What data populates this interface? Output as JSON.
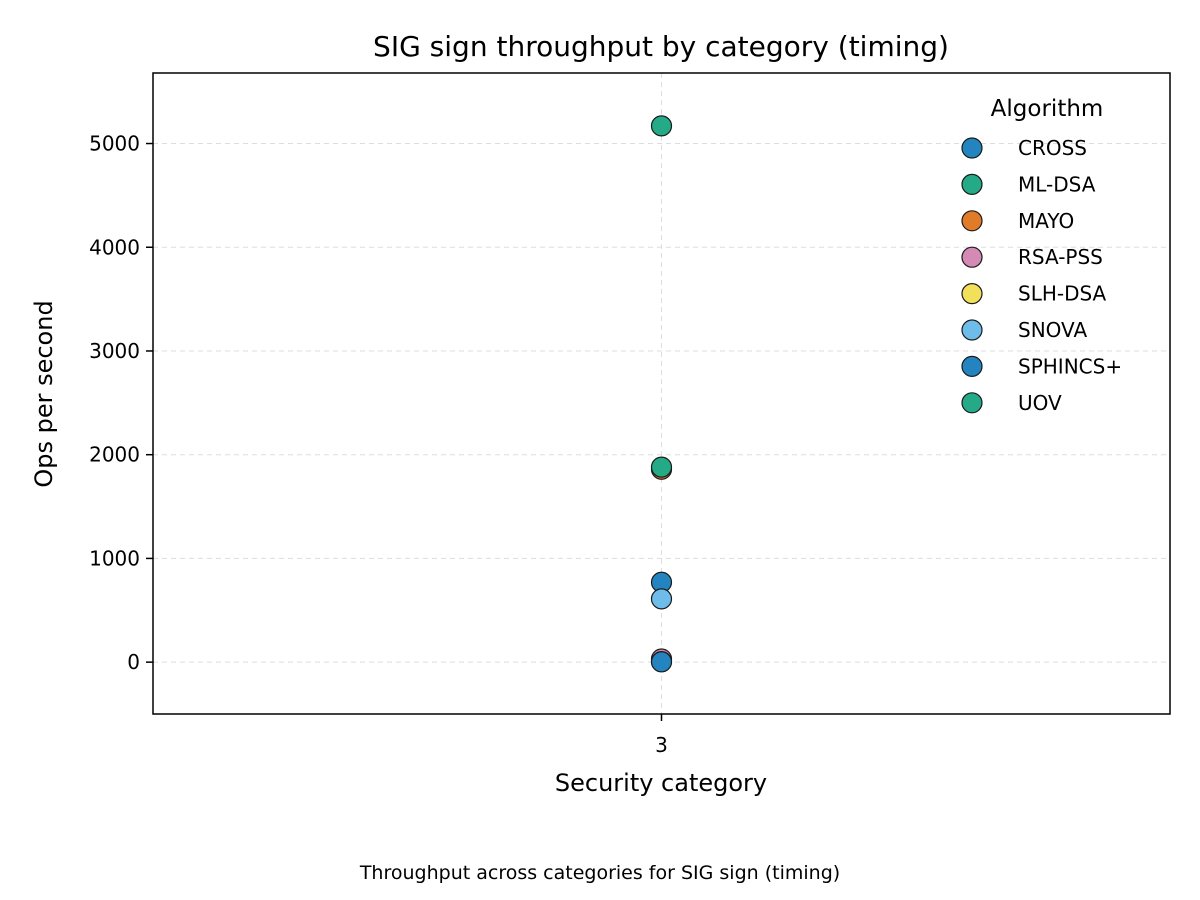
{
  "chart_data": {
    "type": "scatter",
    "title": "SIG sign throughput by category (timing)",
    "xlabel": "Security category",
    "ylabel": "Ops per second",
    "caption": "Throughput across categories for SIG sign (timing)",
    "x_categories": [
      "3"
    ],
    "ylim": [
      -500,
      5680
    ],
    "yticks": [
      0,
      1000,
      2000,
      3000,
      4000,
      5000
    ],
    "grid": true,
    "legend": {
      "title": "Algorithm",
      "placement": "top-right"
    },
    "series": [
      {
        "name": "CROSS",
        "color": "#2384c0",
        "points": [
          {
            "x": "3",
            "y": 770
          }
        ]
      },
      {
        "name": "ML-DSA",
        "color": "#25aa87",
        "points": [
          {
            "x": "3",
            "y": 5170
          }
        ]
      },
      {
        "name": "MAYO",
        "color": "#e07b2a",
        "points": [
          {
            "x": "3",
            "y": 1860
          }
        ]
      },
      {
        "name": "RSA-PSS",
        "color": "#d48ab4",
        "points": [
          {
            "x": "3",
            "y": 30
          }
        ]
      },
      {
        "name": "SLH-DSA",
        "color": "#f2e05a",
        "points": [
          {
            "x": "3",
            "y": 5
          }
        ]
      },
      {
        "name": "SNOVA",
        "color": "#6dbce9",
        "points": [
          {
            "x": "3",
            "y": 610
          }
        ]
      },
      {
        "name": "SPHINCS+",
        "color": "#2384c0",
        "points": [
          {
            "x": "3",
            "y": 3
          }
        ]
      },
      {
        "name": "UOV",
        "color": "#25aa87",
        "points": [
          {
            "x": "3",
            "y": 1880
          }
        ]
      }
    ]
  }
}
